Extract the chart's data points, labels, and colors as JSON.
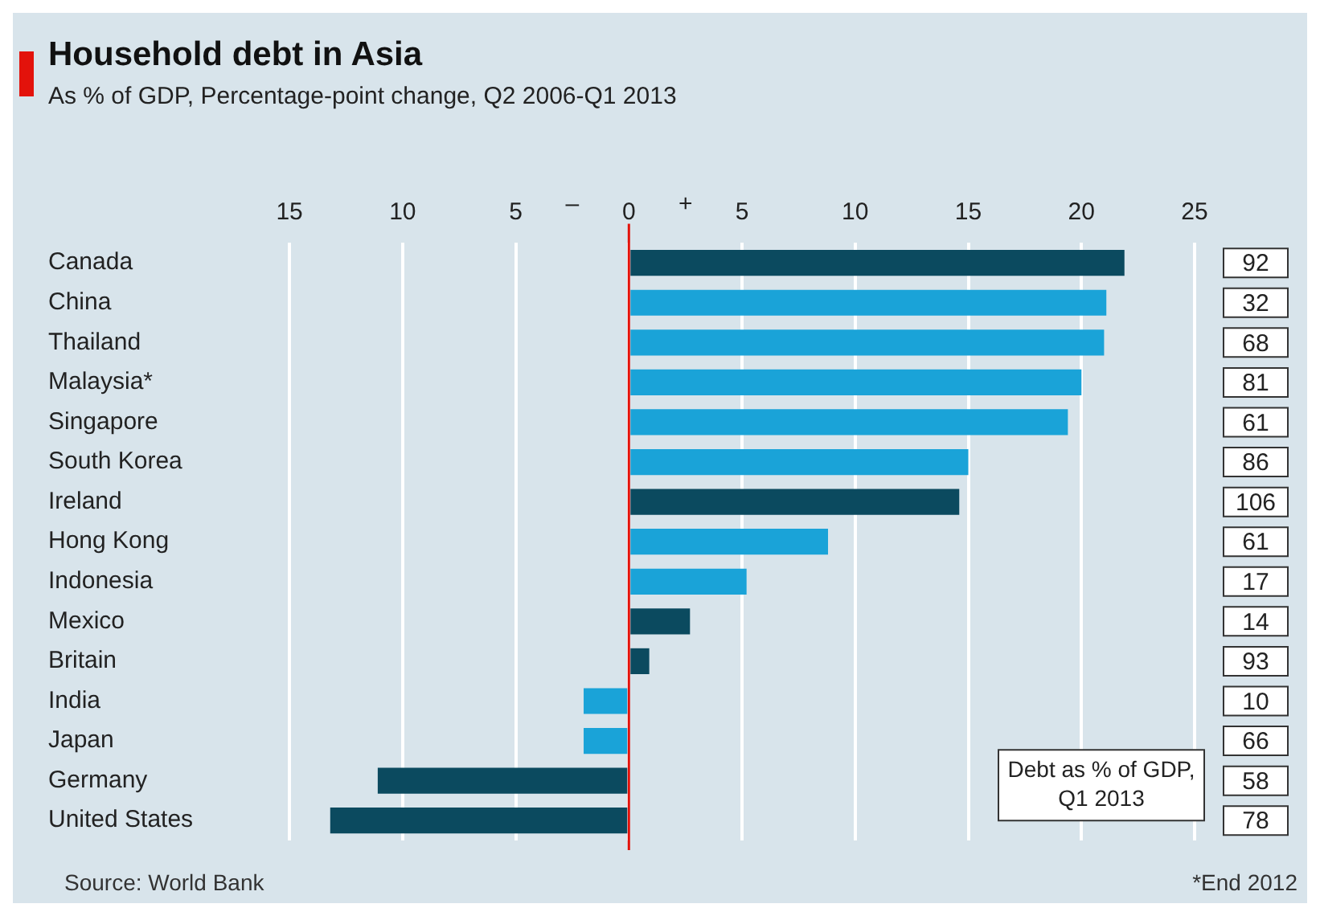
{
  "chart_data": {
    "type": "bar",
    "orientation": "horizontal",
    "title": "Household debt in Asia",
    "subtitle": "As % of GDP, Percentage-point change, Q2 2006-Q1 2013",
    "categories": [
      "Canada",
      "China",
      "Thailand",
      "Malaysia*",
      "Singapore",
      "South Korea",
      "Ireland",
      "Hong Kong",
      "Indonesia",
      "Mexico",
      "Britain",
      "India",
      "Japan",
      "Germany",
      "United States"
    ],
    "values": [
      21.9,
      21.1,
      21.0,
      20.0,
      19.4,
      15.0,
      14.6,
      8.8,
      5.2,
      2.7,
      0.9,
      -2.0,
      -2.0,
      -11.1,
      -13.2
    ],
    "colors": [
      "#0b4a5f",
      "#1aa3d8",
      "#1aa3d8",
      "#1aa3d8",
      "#1aa3d8",
      "#1aa3d8",
      "#0b4a5f",
      "#1aa3d8",
      "#1aa3d8",
      "#0b4a5f",
      "#0b4a5f",
      "#1aa3d8",
      "#1aa3d8",
      "#0b4a5f",
      "#0b4a5f"
    ],
    "xlim": [
      -15,
      25
    ],
    "xticks": [
      {
        "value": -15,
        "label": "15"
      },
      {
        "value": -10,
        "label": "10"
      },
      {
        "value": -5,
        "label": "5"
      },
      0,
      5,
      10,
      15,
      20,
      25
    ],
    "grid": "x",
    "legend": false,
    "ref_lines": [
      {
        "axis": "x",
        "value": 0,
        "color": "#e3120b"
      }
    ],
    "annotations": [
      "–",
      "+",
      "92",
      "32",
      "68",
      "81",
      "61",
      "86",
      "106",
      "61",
      "17",
      "14",
      "93",
      "10",
      "66",
      "58",
      "78",
      "Debt as % of GDP, Q1 2013",
      "Source: World Bank",
      "*End 2012"
    ]
  }
}
